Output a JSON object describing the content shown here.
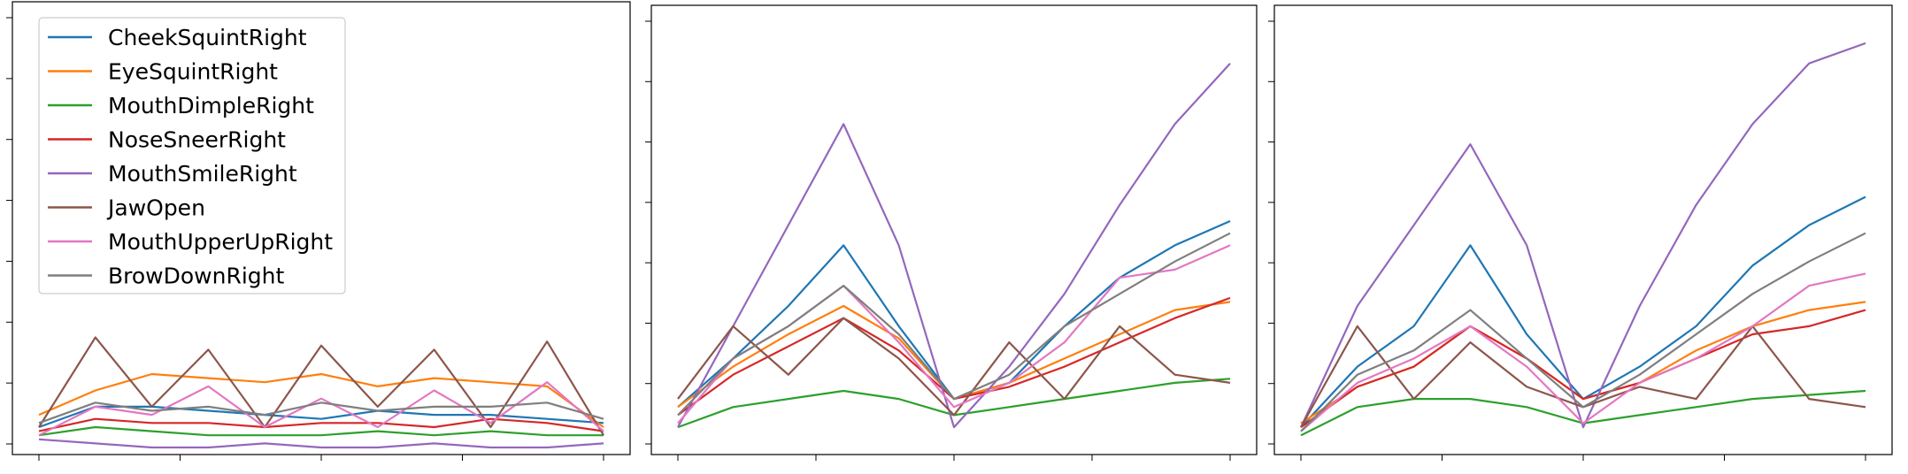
{
  "chart_data": {
    "type": "line",
    "panels": 3,
    "legend": {
      "placement": "top-left",
      "panel": 0,
      "entries": [
        "CheekSquintRight",
        "EyeSquintRight",
        "MouthDimpleRight",
        "NoseSneerRight",
        "MouthSmileRight",
        "JawOpen",
        "MouthUpperUpRight",
        "BrowDownRight"
      ]
    },
    "x_ticks_per_panel": 5,
    "tick_labels": [],
    "series_colors": {
      "CheekSquintRight": "#1f77b4",
      "EyeSquintRight": "#ff7f0e",
      "MouthDimpleRight": "#2ca02c",
      "NoseSneerRight": "#d62728",
      "MouthSmileRight": "#9467bd",
      "JawOpen": "#8c564b",
      "MouthUpperUpRight": "#e377c2",
      "BrowDownRight": "#7f7f7f"
    },
    "series": [
      {
        "name": "panel-1",
        "lines": [
          {
            "name": "CheekSquintRight",
            "values": [
              0.05,
              0.1,
              0.1,
              0.09,
              0.08,
              0.07,
              0.09,
              0.08,
              0.08,
              0.07,
              0.06
            ]
          },
          {
            "name": "EyeSquintRight",
            "values": [
              0.08,
              0.14,
              0.18,
              0.17,
              0.16,
              0.18,
              0.15,
              0.17,
              0.16,
              0.15,
              0.05
            ]
          },
          {
            "name": "MouthDimpleRight",
            "values": [
              0.03,
              0.05,
              0.04,
              0.03,
              0.03,
              0.03,
              0.04,
              0.03,
              0.04,
              0.03,
              0.03
            ]
          },
          {
            "name": "NoseSneerRight",
            "values": [
              0.04,
              0.07,
              0.06,
              0.06,
              0.05,
              0.06,
              0.06,
              0.05,
              0.07,
              0.06,
              0.04
            ]
          },
          {
            "name": "MouthSmileRight",
            "values": [
              0.02,
              0.01,
              0.0,
              0.0,
              0.01,
              0.0,
              0.0,
              0.01,
              0.0,
              0.0,
              0.01
            ]
          },
          {
            "name": "JawOpen",
            "values": [
              0.05,
              0.27,
              0.1,
              0.24,
              0.05,
              0.25,
              0.1,
              0.24,
              0.05,
              0.26,
              0.03
            ]
          },
          {
            "name": "MouthUpperUpRight",
            "values": [
              0.03,
              0.1,
              0.08,
              0.15,
              0.05,
              0.12,
              0.05,
              0.14,
              0.06,
              0.16,
              0.04
            ]
          },
          {
            "name": "BrowDownRight",
            "values": [
              0.06,
              0.11,
              0.09,
              0.1,
              0.08,
              0.11,
              0.09,
              0.1,
              0.1,
              0.11,
              0.07
            ]
          }
        ]
      },
      {
        "name": "panel-2",
        "lines": [
          {
            "name": "CheekSquintRight",
            "values": [
              0.1,
              0.22,
              0.35,
              0.5,
              0.3,
              0.12,
              0.16,
              0.3,
              0.42,
              0.5,
              0.56
            ]
          },
          {
            "name": "EyeSquintRight",
            "values": [
              0.1,
              0.2,
              0.28,
              0.35,
              0.27,
              0.12,
              0.16,
              0.22,
              0.28,
              0.34,
              0.36
            ]
          },
          {
            "name": "MouthDimpleRight",
            "values": [
              0.05,
              0.1,
              0.12,
              0.14,
              0.12,
              0.08,
              0.1,
              0.12,
              0.14,
              0.16,
              0.17
            ]
          },
          {
            "name": "NoseSneerRight",
            "values": [
              0.08,
              0.18,
              0.25,
              0.32,
              0.24,
              0.12,
              0.15,
              0.2,
              0.26,
              0.32,
              0.37
            ]
          },
          {
            "name": "MouthSmileRight",
            "values": [
              0.05,
              0.3,
              0.55,
              0.8,
              0.5,
              0.05,
              0.2,
              0.38,
              0.6,
              0.8,
              0.95
            ]
          },
          {
            "name": "JawOpen",
            "values": [
              0.12,
              0.3,
              0.18,
              0.32,
              0.22,
              0.08,
              0.26,
              0.12,
              0.3,
              0.18,
              0.16
            ]
          },
          {
            "name": "MouthUpperUpRight",
            "values": [
              0.06,
              0.22,
              0.3,
              0.4,
              0.26,
              0.1,
              0.16,
              0.26,
              0.42,
              0.44,
              0.5
            ]
          },
          {
            "name": "BrowDownRight",
            "values": [
              0.08,
              0.22,
              0.3,
              0.4,
              0.28,
              0.12,
              0.18,
              0.3,
              0.38,
              0.46,
              0.53
            ]
          }
        ]
      },
      {
        "name": "panel-3",
        "lines": [
          {
            "name": "CheekSquintRight",
            "values": [
              0.05,
              0.2,
              0.3,
              0.5,
              0.28,
              0.12,
              0.2,
              0.3,
              0.45,
              0.55,
              0.62
            ]
          },
          {
            "name": "EyeSquintRight",
            "values": [
              0.06,
              0.15,
              0.2,
              0.3,
              0.22,
              0.12,
              0.16,
              0.24,
              0.3,
              0.34,
              0.36
            ]
          },
          {
            "name": "MouthDimpleRight",
            "values": [
              0.03,
              0.1,
              0.12,
              0.12,
              0.1,
              0.06,
              0.08,
              0.1,
              0.12,
              0.13,
              0.14
            ]
          },
          {
            "name": "NoseSneerRight",
            "values": [
              0.05,
              0.15,
              0.2,
              0.3,
              0.22,
              0.12,
              0.16,
              0.22,
              0.28,
              0.3,
              0.34
            ]
          },
          {
            "name": "MouthSmileRight",
            "values": [
              0.05,
              0.35,
              0.55,
              0.75,
              0.5,
              0.05,
              0.35,
              0.6,
              0.8,
              0.95,
              1.0
            ]
          },
          {
            "name": "JawOpen",
            "values": [
              0.05,
              0.3,
              0.12,
              0.26,
              0.15,
              0.1,
              0.15,
              0.12,
              0.3,
              0.12,
              0.1
            ]
          },
          {
            "name": "MouthUpperUpRight",
            "values": [
              0.04,
              0.16,
              0.22,
              0.3,
              0.2,
              0.06,
              0.16,
              0.22,
              0.3,
              0.4,
              0.43
            ]
          },
          {
            "name": "BrowDownRight",
            "values": [
              0.04,
              0.18,
              0.24,
              0.34,
              0.22,
              0.1,
              0.18,
              0.28,
              0.38,
              0.46,
              0.53
            ]
          }
        ]
      }
    ]
  }
}
